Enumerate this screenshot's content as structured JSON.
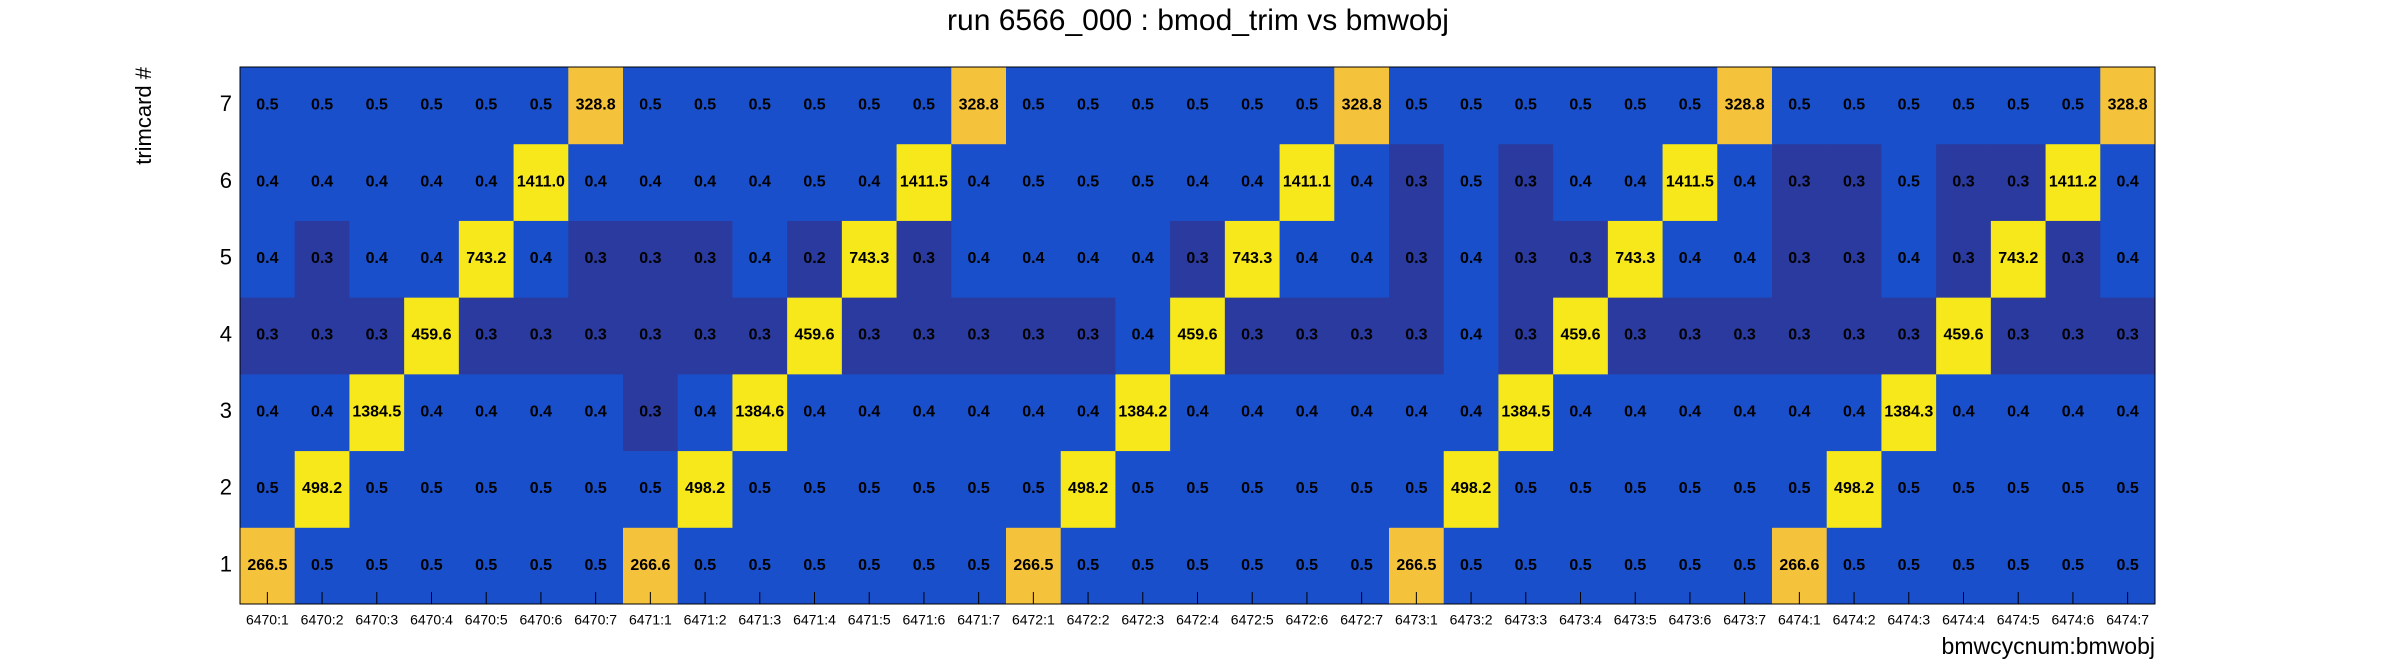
{
  "chart_data": {
    "type": "heatmap",
    "title": "run 6566_000 : bmod_trim vs bmwobj",
    "x_label": "bmwcycnum:bmwobj",
    "y_label": "trimcard #",
    "categories": [
      "6470:1",
      "6470:2",
      "6470:3",
      "6470:4",
      "6470:5",
      "6470:6",
      "6470:7",
      "6471:1",
      "6471:2",
      "6471:3",
      "6471:4",
      "6471:5",
      "6471:6",
      "6471:7",
      "6472:1",
      "6472:2",
      "6472:3",
      "6472:4",
      "6472:5",
      "6472:6",
      "6472:7",
      "6473:1",
      "6473:2",
      "6473:3",
      "6473:4",
      "6473:5",
      "6473:6",
      "6473:7",
      "6474:1",
      "6474:2",
      "6474:3",
      "6474:4",
      "6474:5",
      "6474:6",
      "6474:7"
    ],
    "series": [
      {
        "name": "1",
        "values": [
          266.5,
          0.5,
          0.5,
          0.5,
          0.5,
          0.5,
          0.5,
          266.6,
          0.5,
          0.5,
          0.5,
          0.5,
          0.5,
          0.5,
          266.5,
          0.5,
          0.5,
          0.5,
          0.5,
          0.5,
          0.5,
          266.5,
          0.5,
          0.5,
          0.5,
          0.5,
          0.5,
          0.5,
          266.6,
          0.5,
          0.5,
          0.5,
          0.5,
          0.5,
          0.5
        ]
      },
      {
        "name": "2",
        "values": [
          0.5,
          498.2,
          0.5,
          0.5,
          0.5,
          0.5,
          0.5,
          0.5,
          498.2,
          0.5,
          0.5,
          0.5,
          0.5,
          0.5,
          0.5,
          498.2,
          0.5,
          0.5,
          0.5,
          0.5,
          0.5,
          0.5,
          498.2,
          0.5,
          0.5,
          0.5,
          0.5,
          0.5,
          0.5,
          498.2,
          0.5,
          0.5,
          0.5,
          0.5,
          0.5
        ]
      },
      {
        "name": "3",
        "values": [
          0.4,
          0.4,
          1384.5,
          0.4,
          0.4,
          0.4,
          0.4,
          0.3,
          0.4,
          1384.6,
          0.4,
          0.4,
          0.4,
          0.4,
          0.4,
          0.4,
          1384.2,
          0.4,
          0.4,
          0.4,
          0.4,
          0.4,
          0.4,
          1384.5,
          0.4,
          0.4,
          0.4,
          0.4,
          0.4,
          0.4,
          1384.3,
          0.4,
          0.4,
          0.4,
          0.4
        ]
      },
      {
        "name": "4",
        "values": [
          0.3,
          0.3,
          0.3,
          459.6,
          0.3,
          0.3,
          0.3,
          0.3,
          0.3,
          0.3,
          459.6,
          0.3,
          0.3,
          0.3,
          0.3,
          0.3,
          0.4,
          459.6,
          0.3,
          0.3,
          0.3,
          0.3,
          0.4,
          0.3,
          459.6,
          0.3,
          0.3,
          0.3,
          0.3,
          0.3,
          0.3,
          459.6,
          0.3,
          0.3,
          0.3
        ]
      },
      {
        "name": "5",
        "values": [
          0.4,
          0.3,
          0.4,
          0.4,
          743.2,
          0.4,
          0.3,
          0.3,
          0.3,
          0.4,
          0.2,
          743.3,
          0.3,
          0.4,
          0.4,
          0.4,
          0.4,
          0.3,
          743.3,
          0.4,
          0.4,
          0.3,
          0.4,
          0.3,
          0.3,
          743.3,
          0.4,
          0.4,
          0.3,
          0.3,
          0.4,
          0.3,
          743.2,
          0.3,
          0.4
        ]
      },
      {
        "name": "6",
        "values": [
          0.4,
          0.4,
          0.4,
          0.4,
          0.4,
          1411.0,
          0.4,
          0.4,
          0.4,
          0.4,
          0.5,
          0.4,
          1411.5,
          0.4,
          0.5,
          0.5,
          0.5,
          0.4,
          0.4,
          1411.1,
          0.4,
          0.3,
          0.5,
          0.3,
          0.4,
          0.4,
          1411.5,
          0.4,
          0.3,
          0.3,
          0.5,
          0.3,
          0.3,
          1411.2,
          0.4
        ]
      },
      {
        "name": "7",
        "values": [
          0.5,
          0.5,
          0.5,
          0.5,
          0.5,
          0.5,
          328.8,
          0.5,
          0.5,
          0.5,
          0.5,
          0.5,
          0.5,
          328.8,
          0.5,
          0.5,
          0.5,
          0.5,
          0.5,
          0.5,
          328.8,
          0.5,
          0.5,
          0.5,
          0.5,
          0.5,
          0.5,
          328.8,
          0.5,
          0.5,
          0.5,
          0.5,
          0.5,
          0.5,
          328.8
        ]
      }
    ],
    "value_labels": [
      [
        "266.5",
        "0.5",
        "0.5",
        "0.5",
        "0.5",
        "0.5",
        "0.5",
        "266.6",
        "0.5",
        "0.5",
        "0.5",
        "0.5",
        "0.5",
        "0.5",
        "266.5",
        "0.5",
        "0.5",
        "0.5",
        "0.5",
        "0.5",
        "0.5",
        "266.5",
        "0.5",
        "0.5",
        "0.5",
        "0.5",
        "0.5",
        "0.5",
        "266.6",
        "0.5",
        "0.5",
        "0.5",
        "0.5",
        "0.5",
        "0.5"
      ],
      [
        "0.5",
        "498.2",
        "0.5",
        "0.5",
        "0.5",
        "0.5",
        "0.5",
        "0.5",
        "498.2",
        "0.5",
        "0.5",
        "0.5",
        "0.5",
        "0.5",
        "0.5",
        "498.2",
        "0.5",
        "0.5",
        "0.5",
        "0.5",
        "0.5",
        "0.5",
        "498.2",
        "0.5",
        "0.5",
        "0.5",
        "0.5",
        "0.5",
        "0.5",
        "498.2",
        "0.5",
        "0.5",
        "0.5",
        "0.5",
        "0.5"
      ],
      [
        "0.4",
        "0.4",
        "1384.5",
        "0.4",
        "0.4",
        "0.4",
        "0.4",
        "0.3",
        "0.4",
        "1384.6",
        "0.4",
        "0.4",
        "0.4",
        "0.4",
        "0.4",
        "0.4",
        "1384.2",
        "0.4",
        "0.4",
        "0.4",
        "0.4",
        "0.4",
        "0.4",
        "1384.5",
        "0.4",
        "0.4",
        "0.4",
        "0.4",
        "0.4",
        "0.4",
        "1384.3",
        "0.4",
        "0.4",
        "0.4",
        "0.4"
      ],
      [
        "0.3",
        "0.3",
        "0.3",
        "459.6",
        "0.3",
        "0.3",
        "0.3",
        "0.3",
        "0.3",
        "0.3",
        "459.6",
        "0.3",
        "0.3",
        "0.3",
        "0.3",
        "0.3",
        "0.4",
        "459.6",
        "0.3",
        "0.3",
        "0.3",
        "0.3",
        "0.4",
        "0.3",
        "459.6",
        "0.3",
        "0.3",
        "0.3",
        "0.3",
        "0.3",
        "0.3",
        "459.6",
        "0.3",
        "0.3",
        "0.3"
      ],
      [
        "0.4",
        "0.3",
        "0.4",
        "0.4",
        "743.2",
        "0.4",
        "0.3",
        "0.3",
        "0.3",
        "0.4",
        "0.2",
        "743.3",
        "0.3",
        "0.4",
        "0.4",
        "0.4",
        "0.4",
        "0.3",
        "743.3",
        "0.4",
        "0.4",
        "0.3",
        "0.4",
        "0.3",
        "0.3",
        "743.3",
        "0.4",
        "0.4",
        "0.3",
        "0.3",
        "0.4",
        "0.3",
        "743.2",
        "0.3",
        "0.4"
      ],
      [
        "0.4",
        "0.4",
        "0.4",
        "0.4",
        "0.4",
        "1411.0",
        "0.4",
        "0.4",
        "0.4",
        "0.4",
        "0.5",
        "0.4",
        "1411.5",
        "0.4",
        "0.5",
        "0.5",
        "0.5",
        "0.4",
        "0.4",
        "1411.1",
        "0.4",
        "0.3",
        "0.5",
        "0.3",
        "0.4",
        "0.4",
        "1411.5",
        "0.4",
        "0.3",
        "0.3",
        "0.5",
        "0.3",
        "0.3",
        "1411.2",
        "0.4"
      ],
      [
        "0.5",
        "0.5",
        "0.5",
        "0.5",
        "0.5",
        "0.5",
        "328.8",
        "0.5",
        "0.5",
        "0.5",
        "0.5",
        "0.5",
        "0.5",
        "328.8",
        "0.5",
        "0.5",
        "0.5",
        "0.5",
        "0.5",
        "0.5",
        "328.8",
        "0.5",
        "0.5",
        "0.5",
        "0.5",
        "0.5",
        "0.5",
        "328.8",
        "0.5",
        "0.5",
        "0.5",
        "0.5",
        "0.5",
        "0.5",
        "328.8"
      ]
    ]
  }
}
